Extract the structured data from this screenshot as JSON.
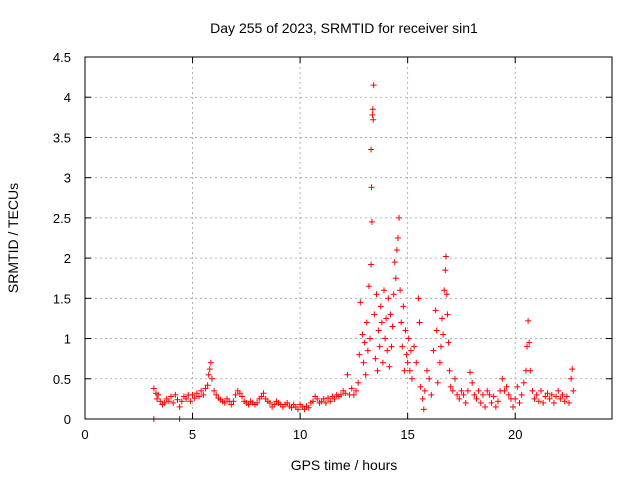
{
  "chart_data": {
    "type": "scatter",
    "title": "Day 255 of 2023, SRMTID for receiver sin1",
    "xlabel": "GPS time / hours",
    "ylabel": "SRMTID / TECUs",
    "xlim": [
      0,
      24.5
    ],
    "ylim": [
      0,
      4.5
    ],
    "xticks": [
      0,
      5,
      10,
      15,
      20
    ],
    "yticks": [
      0,
      0.5,
      1,
      1.5,
      2,
      2.5,
      3,
      3.5,
      4,
      4.5
    ],
    "xtick_labels": [
      "0",
      "5",
      "10",
      "15",
      "20"
    ],
    "ytick_labels": [
      "0",
      "0.5",
      "1",
      "1.5",
      "2",
      "2.5",
      "3",
      "3.5",
      "4",
      "4.5"
    ],
    "grid": true,
    "marker": "+",
    "color": "#ff0000",
    "series": [
      {
        "name": "sin1",
        "points": [
          [
            3.2,
            0.0
          ],
          [
            4.4,
            0.0
          ],
          [
            3.2,
            0.38
          ],
          [
            3.3,
            0.32
          ],
          [
            3.35,
            0.25
          ],
          [
            3.4,
            0.3
          ],
          [
            3.5,
            0.22
          ],
          [
            3.6,
            0.18
          ],
          [
            3.7,
            0.2
          ],
          [
            3.8,
            0.25
          ],
          [
            3.9,
            0.22
          ],
          [
            4.0,
            0.28
          ],
          [
            4.1,
            0.2
          ],
          [
            4.2,
            0.3
          ],
          [
            4.3,
            0.24
          ],
          [
            4.4,
            0.15
          ],
          [
            4.5,
            0.22
          ],
          [
            4.6,
            0.28
          ],
          [
            4.7,
            0.25
          ],
          [
            4.8,
            0.3
          ],
          [
            4.9,
            0.22
          ],
          [
            5.0,
            0.3
          ],
          [
            5.1,
            0.26
          ],
          [
            5.2,
            0.32
          ],
          [
            5.3,
            0.28
          ],
          [
            5.4,
            0.35
          ],
          [
            5.5,
            0.3
          ],
          [
            5.6,
            0.38
          ],
          [
            5.7,
            0.42
          ],
          [
            5.75,
            0.55
          ],
          [
            5.8,
            0.62
          ],
          [
            5.85,
            0.7
          ],
          [
            5.9,
            0.5
          ],
          [
            6.0,
            0.35
          ],
          [
            6.1,
            0.3
          ],
          [
            6.2,
            0.26
          ],
          [
            6.3,
            0.24
          ],
          [
            6.4,
            0.22
          ],
          [
            6.5,
            0.2
          ],
          [
            6.6,
            0.25
          ],
          [
            6.7,
            0.22
          ],
          [
            6.8,
            0.18
          ],
          [
            6.9,
            0.22
          ],
          [
            7.0,
            0.3
          ],
          [
            7.1,
            0.35
          ],
          [
            7.2,
            0.32
          ],
          [
            7.3,
            0.28
          ],
          [
            7.4,
            0.22
          ],
          [
            7.5,
            0.2
          ],
          [
            7.6,
            0.18
          ],
          [
            7.7,
            0.22
          ],
          [
            7.8,
            0.2
          ],
          [
            7.9,
            0.18
          ],
          [
            8.0,
            0.2
          ],
          [
            8.1,
            0.25
          ],
          [
            8.2,
            0.28
          ],
          [
            8.3,
            0.32
          ],
          [
            8.4,
            0.25
          ],
          [
            8.5,
            0.22
          ],
          [
            8.6,
            0.2
          ],
          [
            8.7,
            0.15
          ],
          [
            8.8,
            0.18
          ],
          [
            8.9,
            0.22
          ],
          [
            9.0,
            0.2
          ],
          [
            9.1,
            0.18
          ],
          [
            9.2,
            0.15
          ],
          [
            9.3,
            0.18
          ],
          [
            9.4,
            0.2
          ],
          [
            9.5,
            0.16
          ],
          [
            9.6,
            0.14
          ],
          [
            9.7,
            0.18
          ],
          [
            9.8,
            0.15
          ],
          [
            9.9,
            0.12
          ],
          [
            10.0,
            0.18
          ],
          [
            10.1,
            0.15
          ],
          [
            10.2,
            0.12
          ],
          [
            10.3,
            0.16
          ],
          [
            10.4,
            0.14
          ],
          [
            10.5,
            0.2
          ],
          [
            10.6,
            0.22
          ],
          [
            10.7,
            0.28
          ],
          [
            10.8,
            0.25
          ],
          [
            10.9,
            0.2
          ],
          [
            11.0,
            0.22
          ],
          [
            11.1,
            0.25
          ],
          [
            11.2,
            0.2
          ],
          [
            11.3,
            0.26
          ],
          [
            11.4,
            0.22
          ],
          [
            11.5,
            0.28
          ],
          [
            11.6,
            0.25
          ],
          [
            11.7,
            0.3
          ],
          [
            11.8,
            0.28
          ],
          [
            11.9,
            0.3
          ],
          [
            12.0,
            0.35
          ],
          [
            12.1,
            0.32
          ],
          [
            12.2,
            0.55
          ],
          [
            12.3,
            0.3
          ],
          [
            12.4,
            0.38
          ],
          [
            12.5,
            0.3
          ],
          [
            12.6,
            0.35
          ],
          [
            12.7,
            0.45
          ],
          [
            12.75,
            0.8
          ],
          [
            12.8,
            1.45
          ],
          [
            12.9,
            1.05
          ],
          [
            12.95,
            0.7
          ],
          [
            13.0,
            0.95
          ],
          [
            13.05,
            0.55
          ],
          [
            13.1,
            1.2
          ],
          [
            13.15,
            0.85
          ],
          [
            13.2,
            1.65
          ],
          [
            13.25,
            1.0
          ],
          [
            13.3,
            1.92
          ],
          [
            13.3,
            3.35
          ],
          [
            13.32,
            2.88
          ],
          [
            13.34,
            2.45
          ],
          [
            13.36,
            3.78
          ],
          [
            13.38,
            3.85
          ],
          [
            13.4,
            3.72
          ],
          [
            13.42,
            4.15
          ],
          [
            13.45,
            1.3
          ],
          [
            13.5,
            0.75
          ],
          [
            13.55,
            1.55
          ],
          [
            13.6,
            0.6
          ],
          [
            13.65,
            1.1
          ],
          [
            13.7,
            0.9
          ],
          [
            13.75,
            1.4
          ],
          [
            13.8,
            1.2
          ],
          [
            13.85,
            0.7
          ],
          [
            13.9,
            1.6
          ],
          [
            13.95,
            1.0
          ],
          [
            14.0,
            1.25
          ],
          [
            14.05,
            0.85
          ],
          [
            14.1,
            1.5
          ],
          [
            14.15,
            0.65
          ],
          [
            14.2,
            1.3
          ],
          [
            14.25,
            0.9
          ],
          [
            14.3,
            1.15
          ],
          [
            14.35,
            1.55
          ],
          [
            14.4,
            1.95
          ],
          [
            14.45,
            1.75
          ],
          [
            14.5,
            2.1
          ],
          [
            14.55,
            2.25
          ],
          [
            14.6,
            2.5
          ],
          [
            14.65,
            1.6
          ],
          [
            14.7,
            1.2
          ],
          [
            14.75,
            0.9
          ],
          [
            14.8,
            1.4
          ],
          [
            14.85,
            0.6
          ],
          [
            14.9,
            1.1
          ],
          [
            14.95,
            0.8
          ],
          [
            15.0,
            0.7
          ],
          [
            15.05,
            1.0
          ],
          [
            15.1,
            0.6
          ],
          [
            15.15,
            0.85
          ],
          [
            15.2,
            0.5
          ],
          [
            15.3,
            0.9
          ],
          [
            15.4,
            0.7
          ],
          [
            15.5,
            1.5
          ],
          [
            15.55,
            1.2
          ],
          [
            15.6,
            0.4
          ],
          [
            15.7,
            0.25
          ],
          [
            15.75,
            0.12
          ],
          [
            15.8,
            0.35
          ],
          [
            15.9,
            0.6
          ],
          [
            16.0,
            0.5
          ],
          [
            16.1,
            0.3
          ],
          [
            16.2,
            0.85
          ],
          [
            16.3,
            1.35
          ],
          [
            16.35,
            1.1
          ],
          [
            16.4,
            0.45
          ],
          [
            16.5,
            0.7
          ],
          [
            16.55,
            0.9
          ],
          [
            16.6,
            1.25
          ],
          [
            16.65,
            1.05
          ],
          [
            16.7,
            1.6
          ],
          [
            16.75,
            1.85
          ],
          [
            16.78,
            2.02
          ],
          [
            16.82,
            1.55
          ],
          [
            16.85,
            1.3
          ],
          [
            16.9,
            0.95
          ],
          [
            16.95,
            0.6
          ],
          [
            17.0,
            0.4
          ],
          [
            17.1,
            0.35
          ],
          [
            17.2,
            0.5
          ],
          [
            17.3,
            0.3
          ],
          [
            17.4,
            0.25
          ],
          [
            17.5,
            0.35
          ],
          [
            17.6,
            0.3
          ],
          [
            17.7,
            0.2
          ],
          [
            17.8,
            0.35
          ],
          [
            17.9,
            0.58
          ],
          [
            18.0,
            0.45
          ],
          [
            18.1,
            0.3
          ],
          [
            18.2,
            0.25
          ],
          [
            18.3,
            0.35
          ],
          [
            18.4,
            0.2
          ],
          [
            18.5,
            0.3
          ],
          [
            18.6,
            0.15
          ],
          [
            18.7,
            0.35
          ],
          [
            18.8,
            0.3
          ],
          [
            18.9,
            0.2
          ],
          [
            19.0,
            0.28
          ],
          [
            19.1,
            0.15
          ],
          [
            19.2,
            0.22
          ],
          [
            19.3,
            0.35
          ],
          [
            19.4,
            0.5
          ],
          [
            19.5,
            0.35
          ],
          [
            19.6,
            0.4
          ],
          [
            19.7,
            0.3
          ],
          [
            19.8,
            0.25
          ],
          [
            19.9,
            0.15
          ],
          [
            20.0,
            0.25
          ],
          [
            20.1,
            0.4
          ],
          [
            20.2,
            0.2
          ],
          [
            20.3,
            0.3
          ],
          [
            20.4,
            0.45
          ],
          [
            20.5,
            0.6
          ],
          [
            20.55,
            0.9
          ],
          [
            20.6,
            1.22
          ],
          [
            20.65,
            0.95
          ],
          [
            20.7,
            0.6
          ],
          [
            20.8,
            0.35
          ],
          [
            20.9,
            0.25
          ],
          [
            21.0,
            0.3
          ],
          [
            21.1,
            0.22
          ],
          [
            21.2,
            0.35
          ],
          [
            21.3,
            0.2
          ],
          [
            21.4,
            0.28
          ],
          [
            21.5,
            0.32
          ],
          [
            21.6,
            0.25
          ],
          [
            21.7,
            0.3
          ],
          [
            21.8,
            0.2
          ],
          [
            21.9,
            0.28
          ],
          [
            22.0,
            0.35
          ],
          [
            22.1,
            0.25
          ],
          [
            22.2,
            0.3
          ],
          [
            22.3,
            0.22
          ],
          [
            22.4,
            0.28
          ],
          [
            22.5,
            0.2
          ],
          [
            22.6,
            0.5
          ],
          [
            22.65,
            0.62
          ],
          [
            22.7,
            0.35
          ]
        ]
      }
    ]
  }
}
